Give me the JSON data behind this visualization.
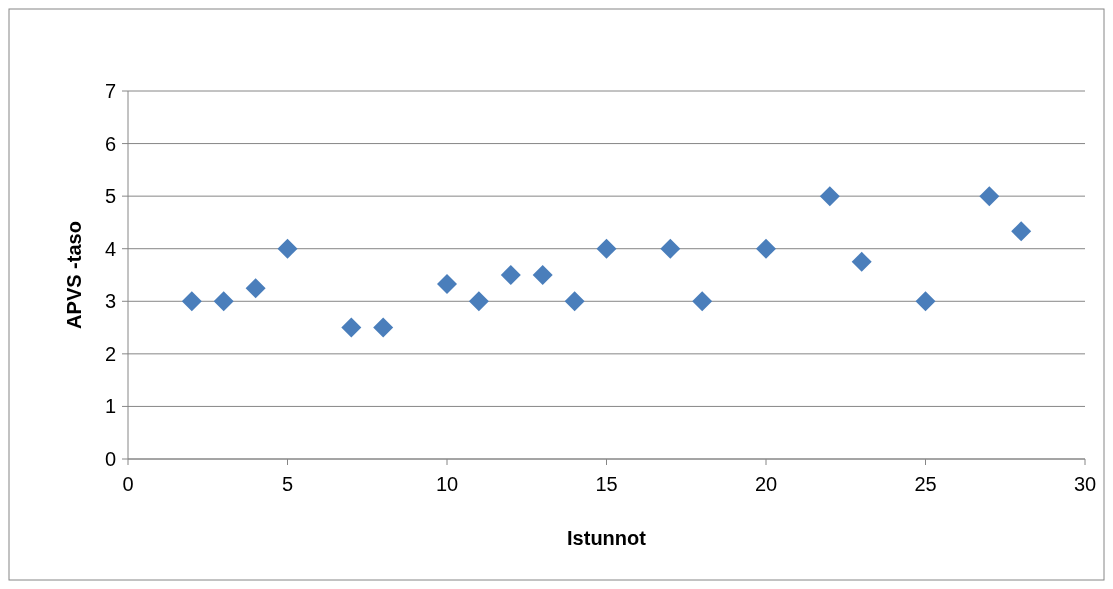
{
  "chart_data": {
    "type": "scatter",
    "xlabel": "Istunnot",
    "ylabel": "APVS -taso",
    "x": [
      2,
      3,
      4,
      5,
      7,
      8,
      10,
      11,
      12,
      13,
      14,
      15,
      17,
      18,
      20,
      22,
      23,
      25,
      27,
      28
    ],
    "values": [
      3,
      3,
      3.25,
      4,
      2.5,
      2.5,
      3.33,
      3,
      3.5,
      3.5,
      3,
      4,
      4,
      3,
      4,
      5,
      3.75,
      3,
      5,
      4.33
    ],
    "color": "#4a7ebb",
    "marker": "diamond",
    "xlim": [
      0,
      30
    ],
    "xticks": [
      0,
      5,
      10,
      15,
      20,
      25,
      30
    ],
    "ylim": [
      0,
      7
    ],
    "yticks": [
      0,
      1,
      2,
      3,
      4,
      5,
      6,
      7
    ],
    "grid": "y"
  }
}
